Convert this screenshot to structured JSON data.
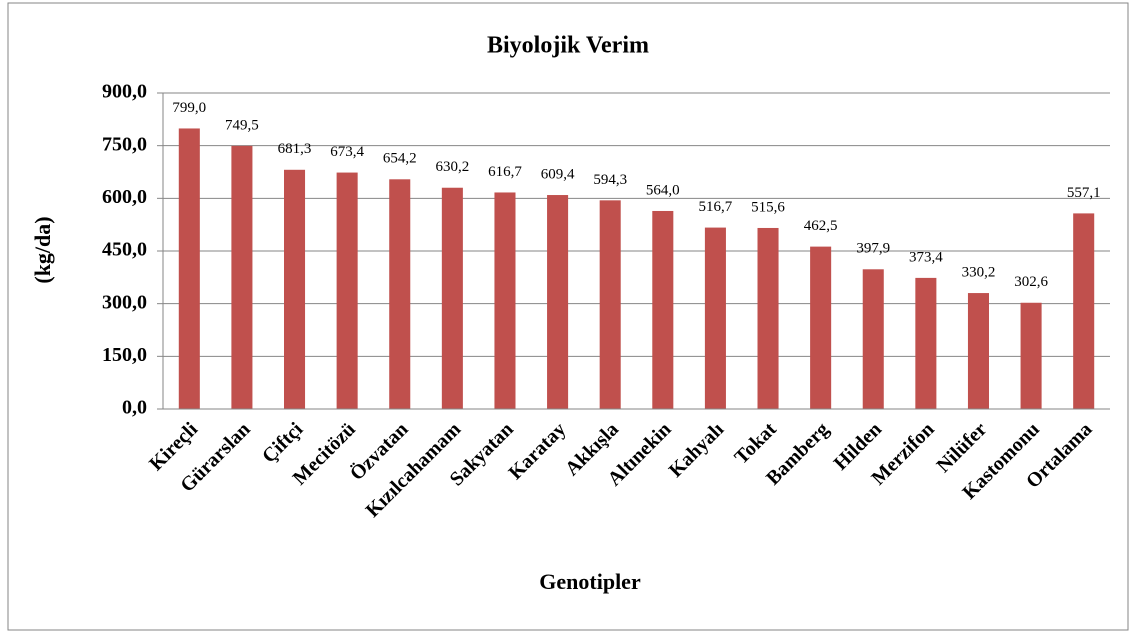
{
  "chart_data": {
    "type": "bar",
    "title": "Biyolojik Verim",
    "x_label": "Genotipler",
    "y_label": "(kg/da)",
    "categories": [
      "Kireçli",
      "Gürarslan",
      "Çiftçi",
      "Mecitözü",
      "Özvatan",
      "Kızılcahamam",
      "Sakyatan",
      "Karatay",
      "Akkışla",
      "Altınekin",
      "Kahyalı",
      "Tokat",
      "Bamberg",
      "Hilden",
      "Merzifon",
      "Nilüfer",
      "Kastomonu",
      "Ortalama"
    ],
    "values": [
      799.0,
      749.5,
      681.3,
      673.4,
      654.2,
      630.2,
      616.7,
      609.4,
      594.3,
      564.0,
      516.7,
      515.6,
      462.5,
      397.9,
      373.4,
      330.2,
      302.6,
      557.1
    ],
    "value_labels": [
      "799,0",
      "749,5",
      "681,3",
      "673,4",
      "654,2",
      "630,2",
      "616,7",
      "609,4",
      "594,3",
      "564,0",
      "516,7",
      "515,6",
      "462,5",
      "397,9",
      "373,4",
      "330,2",
      "302,6",
      "557,1"
    ],
    "color": "#c0504d",
    "ylim": [
      0,
      900
    ],
    "yticks": [
      {
        "value": 0,
        "label": "0,0"
      },
      {
        "value": 150,
        "label": "150,0"
      },
      {
        "value": 300,
        "label": "300,0"
      },
      {
        "value": 450,
        "label": "450,0"
      },
      {
        "value": 600,
        "label": "600,0"
      },
      {
        "value": 750,
        "label": "750,0"
      },
      {
        "value": 900,
        "label": "900,0"
      }
    ],
    "grid": true
  }
}
